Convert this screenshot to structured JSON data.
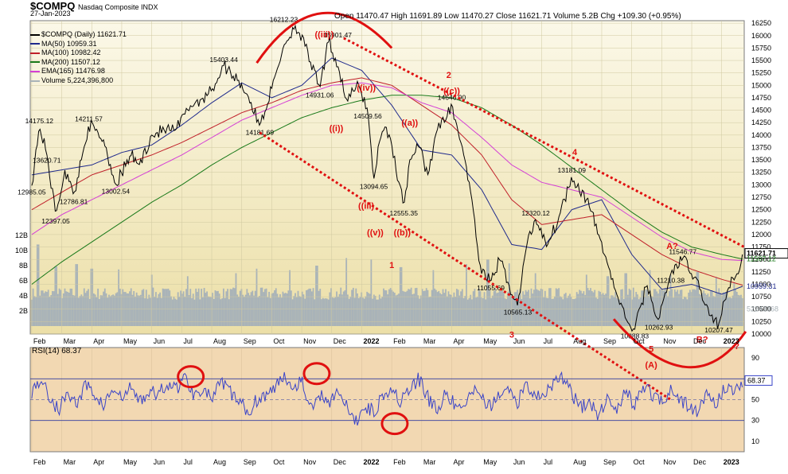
{
  "header": {
    "symbol": "$COMPQ",
    "subtitle": "Nasdaq Composite INDX",
    "date": "27-Jan-2023",
    "ohlc": "Open 11470.47  High 11691.89  Low 11470.27  Close 11621.71  Volume 5.2B  Chg +109.30 (+0.95%)"
  },
  "legend": [
    {
      "label": "$COMPQ (Daily) 11621.71",
      "color": "#000000"
    },
    {
      "label": "MA(50) 10959.31",
      "color": "#1f2a8c"
    },
    {
      "label": "MA(100) 10982.42",
      "color": "#c0202a"
    },
    {
      "label": "MA(200) 11507.12",
      "color": "#1a7a1a"
    },
    {
      "label": "EMA(165) 11476.98",
      "color": "#d53fd5"
    },
    {
      "label": "Volume 5,224,396,800",
      "color": "#a9b3b8"
    }
  ],
  "colors": {
    "panel_top": "#fbf8e8",
    "panel_bottom": "#ecdfa7",
    "rsi_bg": "#f2d8b2",
    "price": "#000000",
    "ma50": "#1f2a8c",
    "ma100": "#c0202a",
    "ma200": "#1a7a1a",
    "ema165": "#d53fd5",
    "volume": "#a9b3b8",
    "rsi_line": "#3a44c8",
    "annotation": "#e01010"
  },
  "chart_data": [
    {
      "type": "line",
      "title": "$COMPQ Nasdaq Composite INDX",
      "ylim": [
        10000,
        16300
      ],
      "y_ticks": [
        10000,
        10250,
        10500,
        10750,
        11000,
        11250,
        11500,
        11750,
        12000,
        12250,
        12500,
        12750,
        13000,
        13250,
        13500,
        13750,
        14000,
        14250,
        14500,
        14750,
        15000,
        15250,
        15500,
        15750,
        16000,
        16250
      ],
      "y_tick_labels": [
        "10000",
        "10250",
        "10500",
        "10750",
        "11000",
        "11250",
        "11500",
        "11750",
        "12000",
        "12250",
        "12500",
        "12750",
        "13000",
        "13250",
        "13500",
        "13750",
        "14000",
        "14250",
        "14500",
        "14750",
        "15000",
        "15250",
        "15500",
        "15750",
        "16000",
        "16250"
      ],
      "x_labels": [
        "Feb",
        "Mar",
        "Apr",
        "May",
        "Jun",
        "Jul",
        "Aug",
        "Sep",
        "Oct",
        "Nov",
        "Dec",
        "2022",
        "Feb",
        "Mar",
        "Apr",
        "May",
        "Jun",
        "Jul",
        "Aug",
        "Sep",
        "Oct",
        "Nov",
        "Dec",
        "2023"
      ],
      "x_label_t": [
        0,
        1,
        2,
        3,
        4,
        5,
        6,
        7,
        8,
        9,
        10,
        11,
        12,
        13,
        14,
        15,
        16,
        17,
        18,
        19,
        20,
        21,
        22,
        23
      ],
      "x_range": [
        -0.05,
        23.75
      ],
      "series": [
        {
          "key": "price",
          "name": "$COMPQ (Daily) 11621.71",
          "t": [
            0,
            0.25,
            0.5,
            0.8,
            1.1,
            1.4,
            1.9,
            2.4,
            2.8,
            3.3,
            3.6,
            4.0,
            4.4,
            4.8,
            5.3,
            5.6,
            6.0,
            6.4,
            6.9,
            7.2,
            7.6,
            8.0,
            8.4,
            8.8,
            9.1,
            9.6,
            9.9,
            10.2,
            10.5,
            10.9,
            11.2,
            11.4,
            11.6,
            11.8,
            12.0,
            12.4,
            12.6,
            12.9,
            13.2,
            13.5,
            13.8,
            14.0,
            14.2,
            14.4,
            14.6,
            14.8,
            15.0,
            15.3,
            15.6,
            15.9,
            16.2,
            16.5,
            16.8,
            17.2,
            17.6,
            18.0,
            18.5,
            18.9,
            19.2,
            19.5,
            19.8,
            20.1,
            20.5,
            20.9,
            21.3,
            21.7,
            22.0,
            22.3,
            22.6,
            22.9,
            23.2,
            23.5,
            23.7
          ],
          "values": [
            12985,
            14175,
            13620,
            12397,
            13300,
            12787,
            14211,
            13900,
            13002,
            13600,
            13400,
            14000,
            14100,
            14100,
            14600,
            14700,
            14900,
            15403,
            15100,
            14800,
            14182,
            14931,
            15800,
            16212,
            15800,
            14931,
            15901,
            15400,
            14700,
            15000,
            14509,
            13095,
            13900,
            14200,
            13800,
            12555,
            13500,
            13800,
            13200,
            14100,
            14300,
            14647,
            14100,
            13600,
            13000,
            12000,
            11200,
            11055,
            11500,
            11000,
            10565,
            11800,
            12320,
            11800,
            12400,
            13181,
            12700,
            12000,
            11400,
            10800,
            10300,
            10089,
            11000,
            10263,
            11210,
            11547,
            11200,
            10900,
            10350,
            10207,
            10900,
            11200,
            11622
          ],
          "annotations": [
            {
              "t": 0,
              "v": 12985,
              "text": "12985.05"
            },
            {
              "t": 0.25,
              "v": 14175,
              "text": "14175.12"
            },
            {
              "t": 0.5,
              "v": 13620,
              "text": "13620.71"
            },
            {
              "t": 0.8,
              "v": 12397,
              "text": "12397.05"
            },
            {
              "t": 1.4,
              "v": 12787,
              "text": "12786.81"
            },
            {
              "t": 1.9,
              "v": 14211,
              "text": "14211.57"
            },
            {
              "t": 2.8,
              "v": 13002,
              "text": "13002.54"
            },
            {
              "t": 6.4,
              "v": 15403,
              "text": "15403.44"
            },
            {
              "t": 7.6,
              "v": 14182,
              "text": "14181.69"
            },
            {
              "t": 8.4,
              "v": 16212,
              "text": "16212.23"
            },
            {
              "t": 9.6,
              "v": 14931,
              "text": "14931.06"
            },
            {
              "t": 10.2,
              "v": 15901,
              "text": "15901.47"
            },
            {
              "t": 11.2,
              "v": 14509,
              "text": "14509.56"
            },
            {
              "t": 11.4,
              "v": 13095,
              "text": "13094.65"
            },
            {
              "t": 12.4,
              "v": 12555,
              "text": "12555.35"
            },
            {
              "t": 14.0,
              "v": 14647,
              "text": "14646.90"
            },
            {
              "t": 15.3,
              "v": 11055,
              "text": "11055.69"
            },
            {
              "t": 16.2,
              "v": 10565,
              "text": "10565.13"
            },
            {
              "t": 16.8,
              "v": 12320,
              "text": "12320.12"
            },
            {
              "t": 18.0,
              "v": 13181,
              "text": "13181.09"
            },
            {
              "t": 20.1,
              "v": 10089,
              "text": "10088.83"
            },
            {
              "t": 20.9,
              "v": 10263,
              "text": "10262.93"
            },
            {
              "t": 21.3,
              "v": 11210,
              "text": "11210.38"
            },
            {
              "t": 21.7,
              "v": 11547,
              "text": "11546.77"
            },
            {
              "t": 22.9,
              "v": 10207,
              "text": "10207.47"
            }
          ]
        },
        {
          "key": "ma50",
          "name": "MA(50) 10959.31",
          "t": [
            0,
            1,
            2,
            3,
            4,
            5,
            6,
            7,
            8,
            9,
            10,
            11,
            12,
            13,
            14,
            15,
            16,
            17,
            18,
            19,
            20,
            21,
            22,
            23,
            23.7
          ],
          "values": [
            13200,
            13300,
            13400,
            13650,
            13800,
            14200,
            14650,
            15050,
            14750,
            15000,
            15550,
            15300,
            14600,
            13700,
            13600,
            12900,
            11800,
            11700,
            12500,
            12700,
            11600,
            10900,
            11000,
            10800,
            10960
          ]
        },
        {
          "key": "ma100",
          "name": "MA(100) 10982.42",
          "t": [
            0,
            1,
            2,
            3,
            4,
            5,
            6,
            7,
            8,
            9,
            10,
            11,
            12,
            13,
            14,
            15,
            16,
            17,
            18,
            19,
            20,
            21,
            22,
            23,
            23.7
          ],
          "values": [
            12500,
            12850,
            13200,
            13400,
            13600,
            13850,
            14150,
            14450,
            14650,
            14900,
            15050,
            15150,
            15000,
            14600,
            14200,
            13600,
            12700,
            12200,
            12300,
            12400,
            12000,
            11600,
            11300,
            11100,
            10982
          ]
        },
        {
          "key": "ma200",
          "name": "MA(200) 11507.12",
          "t": [
            0,
            1,
            2,
            3,
            4,
            5,
            6,
            7,
            8,
            9,
            10,
            11,
            12,
            13,
            14,
            15,
            16,
            17,
            18,
            19,
            20,
            21,
            22,
            23,
            23.7
          ],
          "values": [
            11000,
            11450,
            11850,
            12250,
            12650,
            13000,
            13400,
            13750,
            14050,
            14350,
            14550,
            14700,
            14800,
            14800,
            14750,
            14550,
            14200,
            13800,
            13350,
            12900,
            12450,
            12050,
            11750,
            11600,
            11507
          ]
        },
        {
          "key": "ema165",
          "name": "EMA(165) 11476.98",
          "t": [
            0,
            1,
            2,
            3,
            4,
            5,
            6,
            7,
            8,
            9,
            10,
            11,
            12,
            13,
            14,
            15,
            16,
            17,
            18,
            19,
            20,
            21,
            22,
            23,
            23.7
          ],
          "values": [
            12000,
            12400,
            12700,
            13000,
            13300,
            13600,
            13950,
            14300,
            14550,
            14800,
            15000,
            15050,
            14950,
            14650,
            14450,
            13950,
            13400,
            13050,
            12900,
            12750,
            12350,
            11950,
            11650,
            11500,
            11477
          ]
        }
      ],
      "price_labels": [
        {
          "value": 11621.71,
          "text": "11621.71",
          "color": "#000000"
        },
        {
          "value": 11507.12,
          "text": "11507.12",
          "color": "#1a7a1a"
        },
        {
          "value": 10959.31,
          "text": "10959.31",
          "color": "#1f2a8c"
        },
        {
          "value": 10500,
          "text": "5224396​8",
          "color": "#a9b3b8"
        }
      ]
    },
    {
      "type": "bar",
      "name": "Volume 5,224,396,800",
      "ylim": [
        0,
        12
      ],
      "y_ticks": [
        2,
        4,
        6,
        8,
        10,
        12
      ],
      "y_tick_labels": [
        "2B",
        "4B",
        "6B",
        "8B",
        "10B",
        "12B"
      ],
      "t_range": [
        0,
        23.7
      ],
      "baseline": 4.3,
      "spikes": [
        {
          "t": 0.2,
          "v": 10.8
        },
        {
          "t": 0.8,
          "v": 7.9
        },
        {
          "t": 1.5,
          "v": 8.2
        },
        {
          "t": 2.0,
          "v": 7.6
        },
        {
          "t": 2.9,
          "v": 7.5
        },
        {
          "t": 4.0,
          "v": 6.8
        },
        {
          "t": 5.2,
          "v": 6.6
        },
        {
          "t": 6.8,
          "v": 7.0
        },
        {
          "t": 7.5,
          "v": 7.6
        },
        {
          "t": 8.6,
          "v": 7.4
        },
        {
          "t": 9.5,
          "v": 8.0
        },
        {
          "t": 10.5,
          "v": 9.0
        },
        {
          "t": 11.3,
          "v": 8.8
        },
        {
          "t": 12.3,
          "v": 7.8
        },
        {
          "t": 13.4,
          "v": 7.4
        },
        {
          "t": 14.5,
          "v": 8.2
        },
        {
          "t": 15.2,
          "v": 8.8
        },
        {
          "t": 15.9,
          "v": 8.3
        },
        {
          "t": 16.8,
          "v": 7.0
        },
        {
          "t": 18.5,
          "v": 6.8
        },
        {
          "t": 19.2,
          "v": 6.6
        },
        {
          "t": 19.8,
          "v": 7.0
        },
        {
          "t": 20.6,
          "v": 7.4
        },
        {
          "t": 21.3,
          "v": 6.8
        },
        {
          "t": 22.2,
          "v": 7.2
        },
        {
          "t": 22.8,
          "v": 6.5
        },
        {
          "t": 23.4,
          "v": 5.8
        }
      ]
    },
    {
      "type": "line",
      "title": "RSI(14) 68.37",
      "ylim": [
        0,
        100
      ],
      "y_ticks": [
        10,
        30,
        50,
        70,
        90
      ],
      "y_tick_labels": [
        "10",
        "30",
        "50",
        "70",
        "90"
      ],
      "bands": [
        30,
        50,
        70
      ],
      "last_value": 68.37,
      "t": [
        0,
        0.3,
        0.6,
        0.9,
        1.2,
        1.5,
        1.8,
        2.1,
        2.4,
        2.7,
        3.0,
        3.3,
        3.6,
        3.9,
        4.2,
        4.5,
        4.8,
        5.1,
        5.4,
        5.7,
        6.0,
        6.3,
        6.6,
        6.9,
        7.2,
        7.5,
        7.8,
        8.1,
        8.4,
        8.7,
        9.0,
        9.3,
        9.6,
        9.9,
        10.2,
        10.5,
        10.8,
        11.1,
        11.4,
        11.7,
        12.0,
        12.3,
        12.6,
        12.9,
        13.2,
        13.5,
        13.8,
        14.1,
        14.4,
        14.7,
        15.0,
        15.3,
        15.6,
        15.9,
        16.2,
        16.5,
        16.8,
        17.1,
        17.4,
        17.7,
        18.0,
        18.3,
        18.6,
        18.9,
        19.2,
        19.5,
        19.8,
        20.1,
        20.4,
        20.7,
        21.0,
        21.3,
        21.6,
        21.9,
        22.2,
        22.5,
        22.8,
        23.1,
        23.4,
        23.7
      ],
      "values": [
        58,
        70,
        52,
        40,
        58,
        45,
        64,
        55,
        44,
        60,
        50,
        62,
        48,
        58,
        54,
        66,
        60,
        72,
        55,
        62,
        50,
        66,
        58,
        48,
        38,
        50,
        55,
        60,
        75,
        62,
        70,
        40,
        55,
        48,
        60,
        42,
        28,
        45,
        38,
        55,
        62,
        48,
        58,
        70,
        52,
        40,
        55,
        45,
        38,
        62,
        50,
        42,
        55,
        60,
        48,
        66,
        52,
        58,
        64,
        72,
        56,
        42,
        48,
        35,
        52,
        40,
        58,
        45,
        62,
        55,
        48,
        60,
        52,
        42,
        38,
        55,
        46,
        62,
        58,
        68
      ],
      "circles": [
        {
          "t": 5.3,
          "v": 72
        },
        {
          "t": 9.5,
          "v": 75
        },
        {
          "t": 12.1,
          "v": 27
        }
      ]
    }
  ],
  "elliott": {
    "waves": [
      {
        "t": 9.75,
        "v": 15965,
        "text": "((iii))"
      },
      {
        "t": 10.15,
        "v": 14080,
        "text": "((i))"
      },
      {
        "t": 11.15,
        "v": 14890,
        "text": "((iv))"
      },
      {
        "t": 11.15,
        "v": 12520,
        "text": "((iii)"
      },
      {
        "t": 12.6,
        "v": 14190,
        "text": "((a))"
      },
      {
        "t": 13.9,
        "v": 15150,
        "text": "2"
      },
      {
        "t": 14.0,
        "v": 14830,
        "text": "((c))"
      },
      {
        "t": 11.45,
        "v": 11980,
        "text": "((v))"
      },
      {
        "t": 12.35,
        "v": 11980,
        "text": "((b))"
      },
      {
        "t": 12.0,
        "v": 11330,
        "text": "1"
      },
      {
        "t": 16.0,
        "v": 9930,
        "text": "3"
      },
      {
        "t": 18.1,
        "v": 13600,
        "text": "4"
      },
      {
        "t": 21.35,
        "v": 11710,
        "text": "A?"
      },
      {
        "t": 20.65,
        "v": 9640,
        "text": "5"
      },
      {
        "t": 20.65,
        "v": 9320,
        "text": "(A)"
      },
      {
        "t": 22.35,
        "v": 9830,
        "text": "B?"
      },
      {
        "t": 23.5,
        "v": 9700,
        "text": "?"
      }
    ]
  }
}
